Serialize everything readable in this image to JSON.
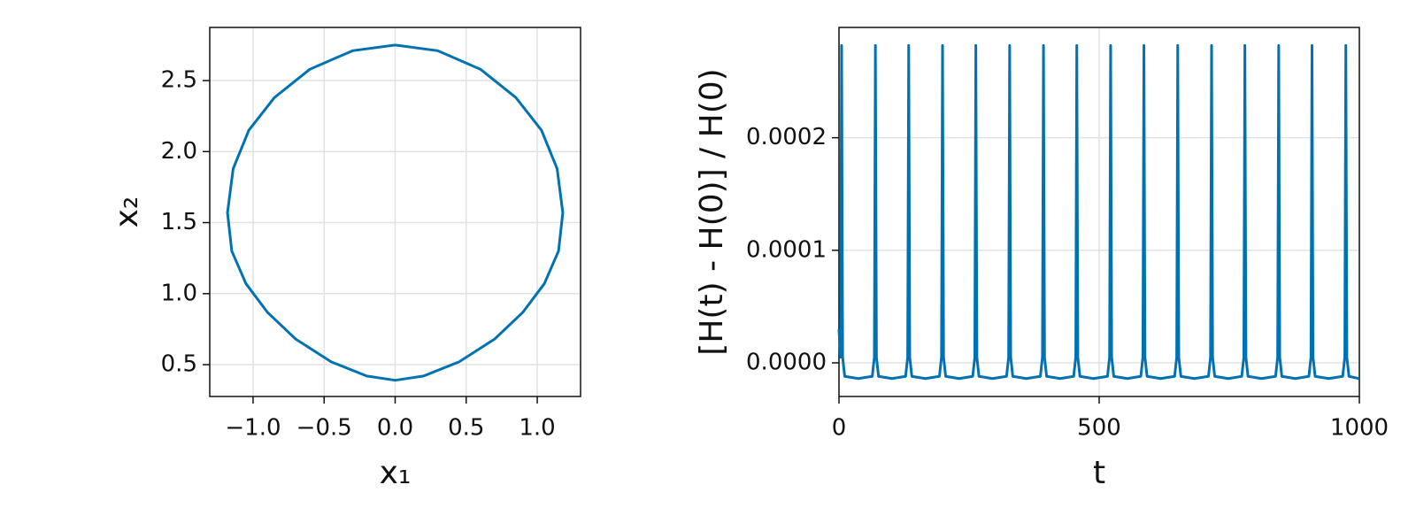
{
  "chart_data": [
    {
      "type": "line",
      "xlabel": "x₁",
      "ylabel": "x₂",
      "color": "#0072b2",
      "grid": true,
      "x": [
        0,
        0.3,
        0.6,
        0.85,
        1.03,
        1.14,
        1.18,
        1.15,
        1.05,
        0.9,
        0.7,
        0.45,
        0.2,
        0,
        -0.2,
        -0.45,
        -0.7,
        -0.9,
        -1.05,
        -1.15,
        -1.18,
        -1.14,
        -1.03,
        -0.85,
        -0.6,
        -0.3,
        0
      ],
      "values": [
        2.75,
        2.71,
        2.58,
        2.38,
        2.15,
        1.88,
        1.57,
        1.3,
        1.07,
        0.87,
        0.68,
        0.52,
        0.42,
        0.39,
        0.42,
        0.52,
        0.68,
        0.87,
        1.07,
        1.3,
        1.57,
        1.88,
        2.15,
        2.38,
        2.58,
        2.71,
        2.75
      ],
      "xlim": [
        -1.305,
        1.305
      ],
      "xticks": [
        {
          "value": -1,
          "label": "−1.0"
        },
        {
          "value": -0.5,
          "label": "−0.5"
        },
        {
          "value": 0,
          "label": "0.0"
        },
        0.5,
        {
          "value": 1,
          "label": "1.0"
        }
      ],
      "ylim": [
        0.276,
        2.874
      ],
      "yticks": [
        0.5,
        {
          "value": 1,
          "label": "1.0"
        },
        1.5,
        {
          "value": 2,
          "label": "2.0"
        },
        2.5
      ]
    },
    {
      "type": "line",
      "xlabel": "t",
      "ylabel": "[H(t) - H(0)] / H(0)",
      "color": "#0072b2",
      "grid": true,
      "x": [
        0,
        3,
        5,
        7,
        11,
        37,
        64,
        68,
        70,
        72,
        76,
        102,
        128,
        132,
        134,
        136,
        140,
        166,
        193,
        197,
        199,
        201,
        205,
        231,
        257,
        261,
        263,
        265,
        269,
        295,
        322,
        326,
        328,
        330,
        334,
        360,
        387,
        391,
        393,
        395,
        399,
        425,
        451,
        455,
        457,
        459,
        463,
        489,
        516,
        520,
        522,
        524,
        528,
        554,
        580,
        584,
        586,
        588,
        592,
        618,
        645,
        649,
        651,
        653,
        657,
        683,
        710,
        714,
        716,
        718,
        722,
        748,
        774,
        778,
        780,
        782,
        786,
        812,
        839,
        843,
        845,
        847,
        851,
        877,
        903,
        907,
        909,
        911,
        915,
        941,
        968,
        972,
        974,
        976,
        980,
        1000
      ],
      "values": [
        3e-05,
        5e-06,
        0.000282,
        5e-06,
        -1.2e-05,
        -1.4e-05,
        -1.2e-05,
        5e-06,
        0.000282,
        5e-06,
        -1.2e-05,
        -1.4e-05,
        -1.2e-05,
        5e-06,
        0.000282,
        5e-06,
        -1.2e-05,
        -1.4e-05,
        -1.2e-05,
        5e-06,
        0.000282,
        5e-06,
        -1.2e-05,
        -1.4e-05,
        -1.2e-05,
        5e-06,
        0.000282,
        5e-06,
        -1.2e-05,
        -1.4e-05,
        -1.2e-05,
        5e-06,
        0.000282,
        5e-06,
        -1.2e-05,
        -1.4e-05,
        -1.2e-05,
        5e-06,
        0.000282,
        5e-06,
        -1.2e-05,
        -1.4e-05,
        -1.2e-05,
        5e-06,
        0.000282,
        5e-06,
        -1.2e-05,
        -1.4e-05,
        -1.2e-05,
        5e-06,
        0.000282,
        5e-06,
        -1.2e-05,
        -1.4e-05,
        -1.2e-05,
        5e-06,
        0.000282,
        5e-06,
        -1.2e-05,
        -1.4e-05,
        -1.2e-05,
        5e-06,
        0.000282,
        5e-06,
        -1.2e-05,
        -1.4e-05,
        -1.2e-05,
        5e-06,
        0.000282,
        5e-06,
        -1.2e-05,
        -1.4e-05,
        -1.2e-05,
        5e-06,
        0.000282,
        5e-06,
        -1.2e-05,
        -1.4e-05,
        -1.2e-05,
        5e-06,
        0.000282,
        5e-06,
        -1.2e-05,
        -1.4e-05,
        -1.2e-05,
        5e-06,
        0.000282,
        5e-06,
        -1.2e-05,
        -1.4e-05,
        -1.2e-05,
        5e-06,
        0.000282,
        5e-06,
        -1.2e-05,
        -1.4e-05
      ],
      "xlim": [
        0,
        1000
      ],
      "xticks": [
        0,
        500,
        1000
      ],
      "ylim": [
        -2.99e-05,
        0.000298
      ],
      "yticks": [
        {
          "value": 0,
          "label": "0.0000"
        },
        {
          "value": 0.0001,
          "label": "0.0001"
        },
        {
          "value": 0.0002,
          "label": "0.0002"
        }
      ]
    }
  ]
}
